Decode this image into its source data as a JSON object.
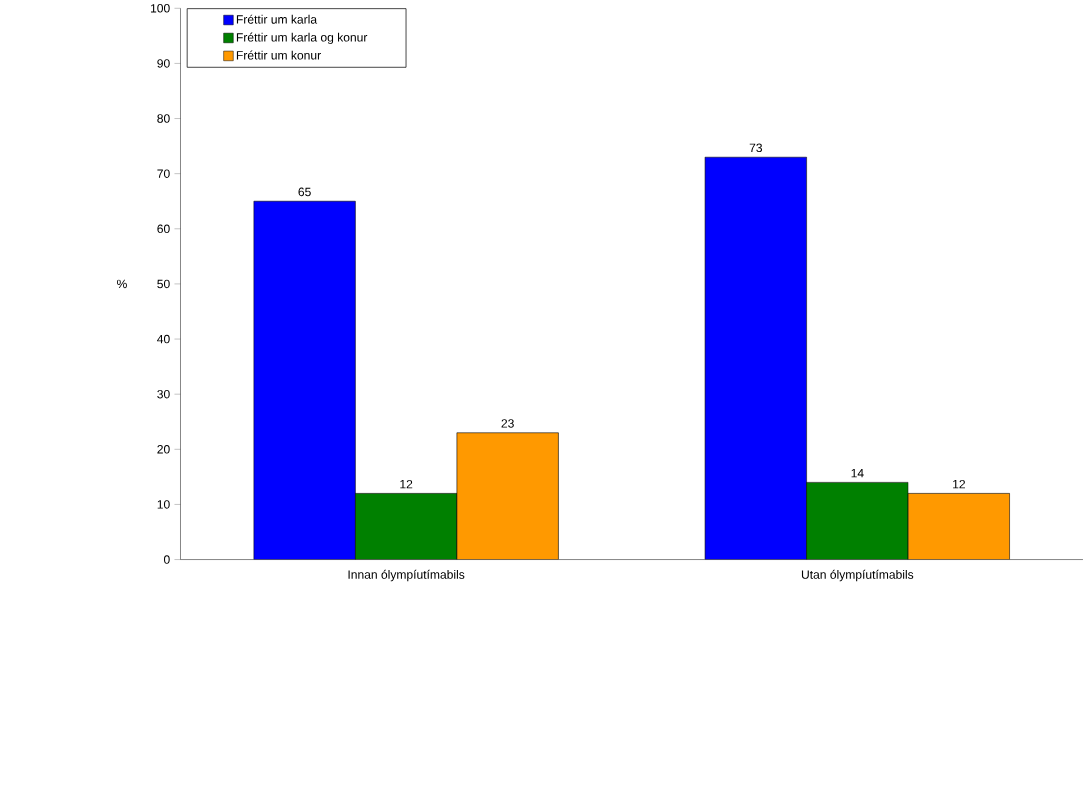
{
  "chart_data": {
    "type": "bar",
    "ylabel": "%",
    "categories": [
      "Innan ólympíutímabils",
      "Utan ólympíutímabils"
    ],
    "series": [
      {
        "name": "Fréttir um karla",
        "color": "#0000ff",
        "values": [
          65,
          73
        ]
      },
      {
        "name": "Fréttir um karla og konur",
        "color": "#008000",
        "values": [
          12,
          14
        ]
      },
      {
        "name": "Fréttir um konur",
        "color": "#ff9900",
        "values": [
          23,
          12
        ]
      }
    ],
    "ylim": [
      0,
      100
    ],
    "yticks": [
      0,
      10,
      20,
      30,
      40,
      50,
      60,
      70,
      80,
      90,
      100
    ],
    "data_labels": true,
    "legend": "top left",
    "grid": false
  }
}
